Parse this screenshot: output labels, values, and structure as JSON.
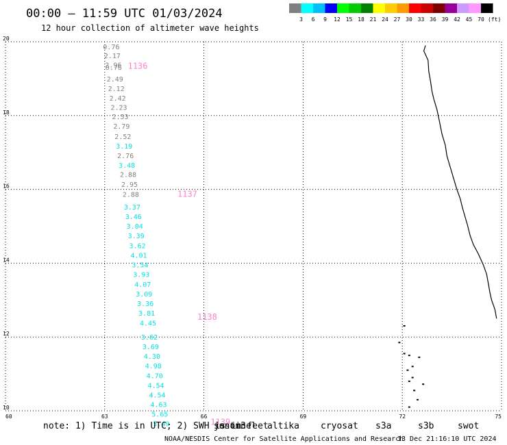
{
  "header": {
    "title": "00:00 – 11:59 UTC 01/03/2024",
    "subtitle": "12 hour collection of altimeter wave heights"
  },
  "colorbar": {
    "labels": [
      "3",
      "6",
      "9",
      "12",
      "15",
      "18",
      "21",
      "24",
      "27",
      "30",
      "33",
      "36",
      "39",
      "42",
      "45",
      "70"
    ],
    "unit": "(ft)",
    "colors": [
      "#808080",
      "#00ffff",
      "#00bfff",
      "#0000ff",
      "#00ff00",
      "#00cc00",
      "#008000",
      "#ffff00",
      "#ffcc00",
      "#ff9900",
      "#ff0000",
      "#cc0000",
      "#800000",
      "#990099",
      "#cc99ff",
      "#ff99ff",
      "#000000"
    ]
  },
  "chart_data": {
    "type": "scatter",
    "title": "00:00 – 11:59 UTC 01/03/2024",
    "subtitle": "12 hour collection of altimeter wave heights",
    "xlim": [
      60,
      75
    ],
    "ylim": [
      10,
      20
    ],
    "x_ticks": [
      "60",
      "63",
      "66",
      "69",
      "72",
      "75"
    ],
    "y_ticks": [
      "20",
      "18",
      "16",
      "14",
      "12",
      "10"
    ],
    "grid": true,
    "track": {
      "points": [
        {
          "x": 63.2,
          "y": 19.87,
          "v": "0.76",
          "color": "#808080"
        },
        {
          "x": 63.23,
          "y": 19.63,
          "v": "2.17",
          "color": "#808080"
        },
        {
          "x": 63.26,
          "y": 19.38,
          "v": "2.96",
          "color": "#808080"
        },
        {
          "x": 63.27,
          "y": 19.31,
          "v": "0.76",
          "color": "#808080"
        },
        {
          "x": 63.31,
          "y": 19.0,
          "v": "2.49",
          "color": "#808080"
        },
        {
          "x": 63.35,
          "y": 18.74,
          "v": "2.12",
          "color": "#808080"
        },
        {
          "x": 63.39,
          "y": 18.48,
          "v": "2.42",
          "color": "#808080"
        },
        {
          "x": 63.43,
          "y": 18.23,
          "v": "2.23",
          "color": "#808080"
        },
        {
          "x": 63.47,
          "y": 17.98,
          "v": "2.53",
          "color": "#808080"
        },
        {
          "x": 63.51,
          "y": 17.72,
          "v": "2.79",
          "color": "#808080"
        },
        {
          "x": 63.55,
          "y": 17.44,
          "v": "2.52",
          "color": "#808080"
        },
        {
          "x": 63.59,
          "y": 17.18,
          "v": "3.19",
          "color": "#00e0e0"
        },
        {
          "x": 63.63,
          "y": 16.92,
          "v": "2.76",
          "color": "#808080"
        },
        {
          "x": 63.67,
          "y": 16.66,
          "v": "3.48",
          "color": "#00e0e0"
        },
        {
          "x": 63.71,
          "y": 16.41,
          "v": "2.88",
          "color": "#808080"
        },
        {
          "x": 63.75,
          "y": 16.14,
          "v": "2.95",
          "color": "#808080"
        },
        {
          "x": 63.79,
          "y": 15.87,
          "v": "2.88",
          "color": "#808080"
        },
        {
          "x": 63.83,
          "y": 15.53,
          "v": "3.37",
          "color": "#00e0e0"
        },
        {
          "x": 63.87,
          "y": 15.27,
          "v": "3.46",
          "color": "#00e0e0"
        },
        {
          "x": 63.91,
          "y": 15.01,
          "v": "3.04",
          "color": "#00e0e0"
        },
        {
          "x": 63.95,
          "y": 14.75,
          "v": "3.39",
          "color": "#00e0e0"
        },
        {
          "x": 63.99,
          "y": 14.48,
          "v": "3.62",
          "color": "#00e0e0"
        },
        {
          "x": 64.03,
          "y": 14.22,
          "v": "4.01",
          "color": "#00e0e0"
        },
        {
          "x": 64.07,
          "y": 13.96,
          "v": "3.54",
          "color": "#00e0e0"
        },
        {
          "x": 64.11,
          "y": 13.7,
          "v": "3.93",
          "color": "#00e0e0"
        },
        {
          "x": 64.15,
          "y": 13.43,
          "v": "4.07",
          "color": "#00e0e0"
        },
        {
          "x": 64.19,
          "y": 13.17,
          "v": "3.09",
          "color": "#00e0e0"
        },
        {
          "x": 64.23,
          "y": 12.91,
          "v": "3.36",
          "color": "#00e0e0"
        },
        {
          "x": 64.27,
          "y": 12.65,
          "v": "3.81",
          "color": "#00e0e0"
        },
        {
          "x": 64.31,
          "y": 12.38,
          "v": "4.45",
          "color": "#00e0e0"
        },
        {
          "x": 64.35,
          "y": 12.0,
          "v": "3.62",
          "color": "#00e0e0"
        },
        {
          "x": 64.39,
          "y": 11.74,
          "v": "3.69",
          "color": "#00e0e0"
        },
        {
          "x": 64.43,
          "y": 11.48,
          "v": "4.30",
          "color": "#00e0e0"
        },
        {
          "x": 64.47,
          "y": 11.22,
          "v": "4.98",
          "color": "#00e0e0"
        },
        {
          "x": 64.51,
          "y": 10.96,
          "v": "4.70",
          "color": "#00e0e0"
        },
        {
          "x": 64.55,
          "y": 10.7,
          "v": "4.54",
          "color": "#00e0e0"
        },
        {
          "x": 64.59,
          "y": 10.44,
          "v": "4.54",
          "color": "#00e0e0"
        },
        {
          "x": 64.63,
          "y": 10.18,
          "v": "4.63",
          "color": "#00e0e0"
        },
        {
          "x": 64.67,
          "y": 9.92,
          "v": "5.65",
          "color": "#00e0e0"
        },
        {
          "x": 64.71,
          "y": 9.66,
          "v": "5.49",
          "color": "#00e0e0"
        }
      ],
      "passes": [
        {
          "x": 64.0,
          "y": 19.36,
          "label": "1136"
        },
        {
          "x": 65.5,
          "y": 15.89,
          "label": "1137"
        },
        {
          "x": 66.1,
          "y": 12.56,
          "label": "1138"
        },
        {
          "x": 66.5,
          "y": 9.71,
          "label": "1139"
        }
      ]
    },
    "satellites": [
      {
        "name": "jason3",
        "overprint": "sentinel",
        "color": "#000000",
        "overprint_color": "#008000"
      },
      {
        "name": "altika",
        "color": "#ff9900"
      },
      {
        "name": "cryosat",
        "color": "#ff0000"
      },
      {
        "name": "s3a",
        "color": "#800000"
      },
      {
        "name": "s3b",
        "color": "#ccaaff"
      },
      {
        "name": "swot",
        "color": "#ff99ff"
      }
    ],
    "coastline": [
      [
        72.7,
        19.9
      ],
      [
        72.65,
        19.75
      ],
      [
        72.78,
        19.5
      ],
      [
        72.8,
        19.2
      ],
      [
        72.85,
        18.95
      ],
      [
        72.9,
        18.65
      ],
      [
        72.95,
        18.45
      ],
      [
        73.05,
        18.15
      ],
      [
        73.12,
        17.85
      ],
      [
        73.2,
        17.5
      ],
      [
        73.3,
        17.2
      ],
      [
        73.35,
        16.9
      ],
      [
        73.45,
        16.6
      ],
      [
        73.55,
        16.3
      ],
      [
        73.65,
        16.0
      ],
      [
        73.75,
        15.75
      ],
      [
        73.82,
        15.5
      ],
      [
        73.9,
        15.25
      ],
      [
        73.98,
        15.0
      ],
      [
        74.05,
        14.75
      ],
      [
        74.15,
        14.5
      ],
      [
        74.3,
        14.25
      ],
      [
        74.45,
        13.95
      ],
      [
        74.55,
        13.7
      ],
      [
        74.6,
        13.45
      ],
      [
        74.65,
        13.2
      ],
      [
        74.7,
        13.0
      ],
      [
        74.8,
        12.75
      ],
      [
        74.85,
        12.5
      ]
    ],
    "islands": [
      [
        72.05,
        12.3
      ],
      [
        71.9,
        11.85
      ],
      [
        72.05,
        11.55
      ],
      [
        72.2,
        11.5
      ],
      [
        72.5,
        11.45
      ],
      [
        72.3,
        11.2
      ],
      [
        72.15,
        11.1
      ],
      [
        72.3,
        10.9
      ],
      [
        72.2,
        10.8
      ],
      [
        72.62,
        10.72
      ],
      [
        72.35,
        10.55
      ],
      [
        72.45,
        10.3
      ],
      [
        72.2,
        10.1
      ]
    ],
    "note": "note: 1) Time is in UTC; 2) SWH is in feet",
    "credit": "NOAA/NESDIS Center for Satellite Applications and Research",
    "timestamp": "13 Dec 21:16:10 UTC 2024"
  }
}
